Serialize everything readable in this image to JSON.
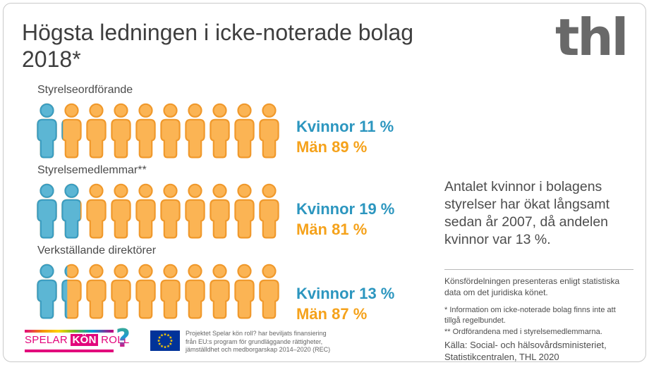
{
  "card": {
    "title": "Högsta ledningen i icke-noterade bolag 2018*",
    "logo": "thl"
  },
  "chart_data": {
    "type": "bar",
    "subtype": "pictogram",
    "title": "Högsta ledningen i icke-noterade bolag 2018*",
    "icons_per_row": 10,
    "categories": [
      "Styrelseordförande",
      "Styrelsemedlemmar**",
      "Verkställande direktörer"
    ],
    "series": [
      {
        "name": "Kvinnor",
        "values": [
          11,
          19,
          13
        ],
        "fill": "#5cb6d4",
        "stroke": "#3b9dc1",
        "text_color": "#2c96bf"
      },
      {
        "name": "Män",
        "values": [
          89,
          81,
          87
        ],
        "fill": "#fbb454",
        "stroke": "#f0992c",
        "text_color": "#f5a21b"
      }
    ],
    "rows": [
      {
        "label": "Styrelseordförande",
        "kvinnor_label": "Kvinnor 11 %",
        "man_label": "Män 89 %"
      },
      {
        "label": "Styrelsemedlemmar**",
        "kvinnor_label": "Kvinnor 19 %",
        "man_label": "Män 81 %"
      },
      {
        "label": "Verkställande direktörer",
        "kvinnor_label": "Kvinnor 13 %",
        "man_label": "Män 87 %"
      }
    ]
  },
  "sidebar": {
    "paragraph": "Antalet kvinnor i bolagens styrelser har ökat långsamt sedan år 2007, då andelen kvinnor var 13 %.",
    "note_gender": "Könsfördelningen presenteras enligt statistiska data om det juridiska könet.",
    "footnote1": "* Information om icke-noterade bolag finns inte att tillgå regelbundet.",
    "footnote2": "** Ordförandena med i styrelsemedlemmarna.",
    "source": [
      "Källa: Social- och hälsovårdsministeriet,",
      "Statistikcentralen, THL 2020"
    ]
  },
  "footer": {
    "spelar": {
      "part1": "SPELAR",
      "part2": "KÖN",
      "part3": "ROLL",
      "qmark": "?"
    },
    "eu_text": [
      "Projektet Spelar kön roll? har beviljats finansiering",
      "från EU:s program för grundläggande rättigheter,",
      "jämställdhet och medborgarskap 2014–2020 (REC)"
    ]
  },
  "colors": {
    "women_blue": "#5cb6d4",
    "men_orange": "#fbb454",
    "magenta": "#e2077c",
    "eu_blue": "#003399",
    "eu_star_yellow": "#ffcc00",
    "text_dark": "#3e3e3e"
  }
}
